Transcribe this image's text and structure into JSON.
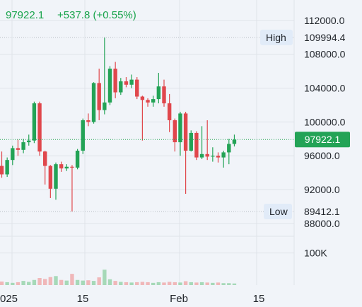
{
  "header": {
    "last_price": "97922.1",
    "change": "+537.8 (+0.55%)"
  },
  "markers": {
    "high_label": "High",
    "high_value": "109994.4",
    "low_label": "Low",
    "low_value": "89412.1",
    "current_value": "97922.1"
  },
  "colors": {
    "up": "#23a356",
    "down": "#e0474c",
    "up_volume": "#a6d9b8",
    "down_volume": "#f0b7b9"
  },
  "chart_data": {
    "type": "candlestick",
    "price_axis": {
      "ticks": [
        "112000.0",
        "108000.0",
        "104000.0",
        "100000.0",
        "96000.0",
        "92000.0",
        "88000.0"
      ],
      "range": [
        87400,
        113500
      ]
    },
    "volume_axis": {
      "ticks": [
        "100K"
      ],
      "range": [
        0,
        150000
      ]
    },
    "x_tick_labels": [
      "025",
      "15",
      "Feb",
      "15"
    ],
    "grid": true,
    "high": 109994.4,
    "low": 89412.1,
    "last": 97922.1,
    "ohlc": [
      [
        94800,
        96500,
        93400,
        93800
      ],
      [
        93800,
        95800,
        93500,
        95500
      ],
      [
        95500,
        97200,
        94900,
        96900
      ],
      [
        96900,
        97900,
        96000,
        96700
      ],
      [
        96700,
        98000,
        96300,
        97600
      ],
      [
        97600,
        98500,
        97200,
        97800
      ],
      [
        97800,
        102400,
        97500,
        102200
      ],
      [
        102200,
        102400,
        96000,
        96500
      ],
      [
        96500,
        96600,
        92600,
        94800
      ],
      [
        94800,
        94900,
        91000,
        92100
      ],
      [
        92100,
        95200,
        90800,
        95000
      ],
      [
        95000,
        95300,
        94100,
        94500
      ],
      [
        94500,
        95000,
        94200,
        94700
      ],
      [
        94700,
        94900,
        89400,
        94600
      ],
      [
        94600,
        96800,
        94400,
        96600
      ],
      [
        96600,
        100400,
        96200,
        100200
      ],
      [
        100200,
        101000,
        99500,
        100000
      ],
      [
        100000,
        104700,
        99800,
        104600
      ],
      [
        104600,
        106300,
        100200,
        101400
      ],
      [
        101400,
        109994,
        100900,
        102300
      ],
      [
        102300,
        106600,
        102000,
        106300
      ],
      [
        106300,
        107100,
        102800,
        103500
      ],
      [
        103500,
        105200,
        103200,
        104800
      ],
      [
        104800,
        105300,
        104100,
        104400
      ],
      [
        104400,
        105600,
        104000,
        105000
      ],
      [
        105000,
        105300,
        102700,
        103000
      ],
      [
        103000,
        103100,
        97800,
        102600
      ],
      [
        102600,
        102800,
        101800,
        102300
      ],
      [
        102300,
        103100,
        101800,
        102700
      ],
      [
        102700,
        105800,
        102200,
        104200
      ],
      [
        104200,
        105000,
        101800,
        102200
      ],
      [
        102200,
        103300,
        98800,
        100200
      ],
      [
        100200,
        100400,
        96500,
        97600
      ],
      [
        97600,
        101200,
        96000,
        101000
      ],
      [
        101000,
        101200,
        91500,
        96600
      ],
      [
        96600,
        99000,
        96500,
        98700
      ],
      [
        98700,
        98900,
        95500,
        95800
      ],
      [
        95800,
        99500,
        95600,
        96200
      ],
      [
        96200,
        100200,
        95500,
        95900
      ],
      [
        95900,
        97000,
        95300,
        96000
      ],
      [
        96000,
        96400,
        95200,
        95800
      ],
      [
        95800,
        96600,
        94600,
        96400
      ],
      [
        96400,
        98000,
        95000,
        97400
      ],
      [
        97400,
        98500,
        97100,
        97900
      ]
    ],
    "volume": [
      11,
      9,
      7,
      9,
      13,
      10,
      16,
      22,
      19,
      25,
      28,
      16,
      14,
      35,
      16,
      14,
      15,
      13,
      24,
      48,
      18,
      13,
      10,
      9,
      8,
      9,
      10,
      9,
      7,
      9,
      8,
      10,
      9,
      8,
      12,
      9,
      8,
      9,
      8,
      7,
      8,
      6,
      6,
      5
    ]
  }
}
